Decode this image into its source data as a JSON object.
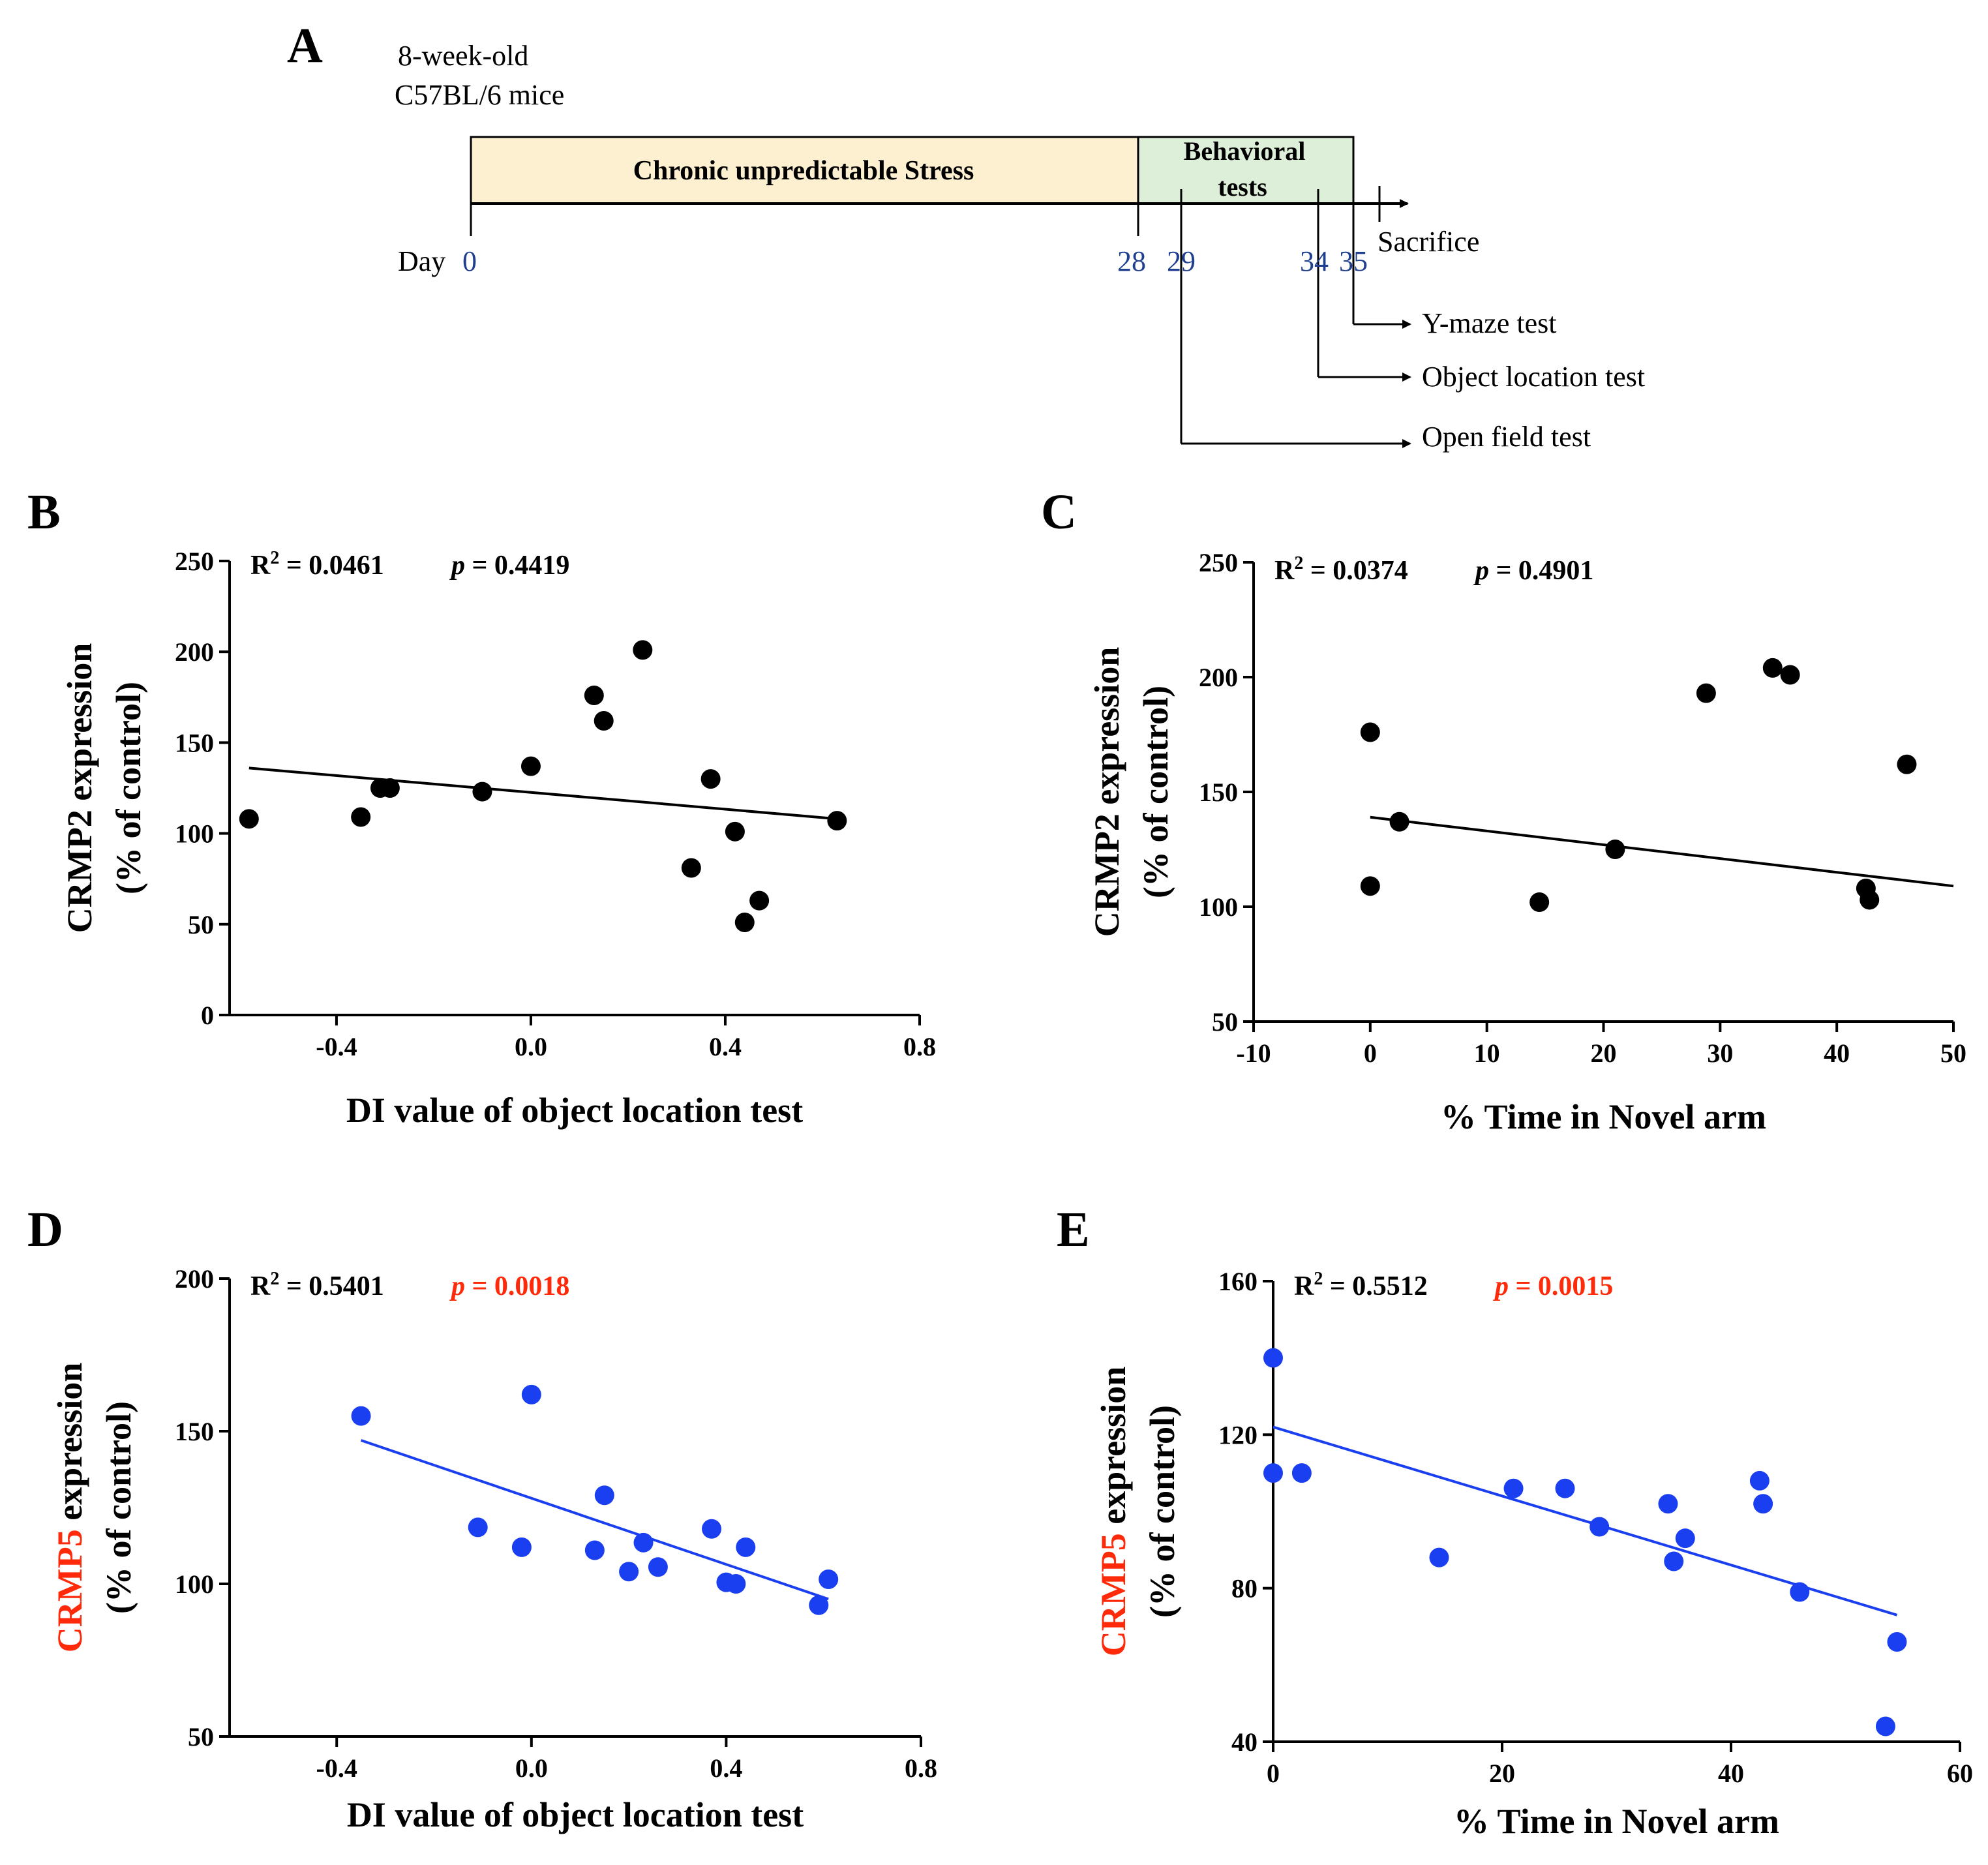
{
  "panel_a": {
    "letter": "A",
    "mice_line1": "8-week-old",
    "mice_line2": "C57BL/6 mice",
    "stress_label": "Chronic unpredictable Stress",
    "behavior_line1": "Behavioral",
    "behavior_line2": "tests",
    "day_label": "Day",
    "day_ticks": [
      "0",
      "28",
      "29",
      "34",
      "35"
    ],
    "sacrifice": "Sacrifice",
    "tests": [
      "Y-maze test",
      "Object location test",
      "Open field test"
    ],
    "colors": {
      "stress_fill": "#fdf0d0",
      "behavior_fill": "#deefd9",
      "day_text": "#1f3f8f"
    }
  },
  "chart_data": [
    {
      "id": "B",
      "type": "scatter",
      "ylabel_gene": "CRMP2",
      "ylabel_rest": " expression",
      "ylabel_line2": "(% of control)",
      "xlabel": "DI value of object location test",
      "r2_prefix": "R",
      "r2_sup": "2",
      "r2_value": " = 0.0461",
      "p_symbol": "p",
      "p_value": " = 0.4419",
      "xlim": [
        -0.62,
        0.8
      ],
      "ylim": [
        0,
        250
      ],
      "xticks": [
        -0.4,
        0.0,
        0.4,
        0.8
      ],
      "xtick_labels": [
        "-0.4",
        "0.0",
        "0.4",
        "0.8"
      ],
      "yticks": [
        0,
        50,
        100,
        150,
        200,
        250
      ],
      "ytick_labels": [
        "0",
        "50",
        "100",
        "150",
        "200",
        "250"
      ],
      "x": [
        -0.58,
        -0.35,
        -0.31,
        -0.29,
        -0.1,
        0.0,
        0.13,
        0.15,
        0.23,
        0.33,
        0.37,
        0.42,
        0.44,
        0.47,
        0.63
      ],
      "y": [
        108,
        109,
        125,
        125,
        123,
        137,
        176,
        162,
        201,
        81,
        130,
        101,
        51,
        63,
        107
      ],
      "fit": [
        [
          -0.58,
          136
        ],
        [
          0.63,
          108
        ]
      ],
      "point_color": "#000000",
      "line_color": "#000000",
      "label_color": "#000000",
      "p_color": "#000000"
    },
    {
      "id": "C",
      "type": "scatter",
      "ylabel_gene": "CRMP2",
      "ylabel_rest": " expression",
      "ylabel_line2": "(% of control)",
      "xlabel": "% Time in Novel arm",
      "r2_prefix": "R",
      "r2_sup": "2",
      "r2_value": " = 0.0374",
      "p_symbol": "p",
      "p_value": " = 0.4901",
      "xlim": [
        -10,
        50
      ],
      "ylim": [
        50,
        250
      ],
      "xticks": [
        -10,
        0,
        10,
        20,
        30,
        40,
        50
      ],
      "xtick_labels": [
        "-10",
        "0",
        "10",
        "20",
        "30",
        "40",
        "50"
      ],
      "yticks": [
        50,
        100,
        150,
        200,
        250
      ],
      "ytick_labels": [
        "50",
        "100",
        "150",
        "200",
        "250"
      ],
      "x": [
        0,
        0,
        2.5,
        14.5,
        21,
        28.8,
        34.5,
        36,
        42.5,
        42.8,
        46
      ],
      "y": [
        176,
        109,
        137,
        102,
        125,
        193,
        204,
        201,
        108,
        103,
        162
      ],
      "fit": [
        [
          0,
          139
        ],
        [
          50,
          109
        ]
      ],
      "point_color": "#000000",
      "line_color": "#000000",
      "label_color": "#000000",
      "p_color": "#000000"
    },
    {
      "id": "D",
      "type": "scatter",
      "ylabel_gene": "CRMP5",
      "ylabel_rest": " expression",
      "ylabel_line2": "(% of control)",
      "xlabel": "DI value of object location test",
      "r2_prefix": "R",
      "r2_sup": "2",
      "r2_value": " = 0.5401",
      "p_symbol": "p",
      "p_value": " = 0.0018",
      "xlim": [
        -0.62,
        0.8
      ],
      "ylim": [
        50,
        200
      ],
      "xticks": [
        -0.4,
        0.0,
        0.4,
        0.8
      ],
      "xtick_labels": [
        "-0.4",
        "0.0",
        "0.4",
        "0.8"
      ],
      "yticks": [
        50,
        100,
        150,
        200
      ],
      "ytick_labels": [
        "50",
        "100",
        "150",
        "200"
      ],
      "x": [
        -0.35,
        -0.11,
        -0.02,
        0.0,
        0.13,
        0.15,
        0.2,
        0.23,
        0.26,
        0.37,
        0.4,
        0.42,
        0.44,
        0.59,
        0.61
      ],
      "y": [
        155,
        118.5,
        112,
        162,
        111,
        129,
        104,
        113.5,
        105.5,
        118,
        100.5,
        100,
        112,
        93,
        101.5
      ],
      "fit": [
        [
          -0.35,
          147
        ],
        [
          0.61,
          95
        ]
      ],
      "point_color": "#1a3ff0",
      "line_color": "#1a3ff0",
      "label_color": "#ff2a0a",
      "p_color": "#ff2a0a"
    },
    {
      "id": "E",
      "type": "scatter",
      "ylabel_gene": "CRMP5",
      "ylabel_rest": " expression",
      "ylabel_line2": "(% of control)",
      "xlabel": "% Time in Novel arm",
      "r2_prefix": "R",
      "r2_sup": "2",
      "r2_value": " = 0.5512",
      "p_symbol": "p",
      "p_value": " = 0.0015",
      "xlim": [
        0,
        60
      ],
      "ylim": [
        40,
        160
      ],
      "xticks": [
        0,
        20,
        40,
        60
      ],
      "xtick_labels": [
        "0",
        "20",
        "40",
        "60"
      ],
      "yticks": [
        40,
        80,
        120,
        160
      ],
      "ytick_labels": [
        "40",
        "80",
        "120",
        "160"
      ],
      "x": [
        0,
        0,
        2.5,
        14.5,
        21,
        25.5,
        28.5,
        34.5,
        35,
        36,
        42.5,
        42.8,
        46,
        53.5,
        54.5
      ],
      "y": [
        140,
        110,
        110,
        88,
        106,
        106,
        96,
        102,
        87,
        93,
        108,
        102,
        79,
        44,
        66
      ],
      "fit": [
        [
          0,
          122
        ],
        [
          54.5,
          73
        ]
      ],
      "point_color": "#1a3ff0",
      "line_color": "#1a3ff0",
      "label_color": "#ff2a0a",
      "p_color": "#ff2a0a"
    }
  ]
}
